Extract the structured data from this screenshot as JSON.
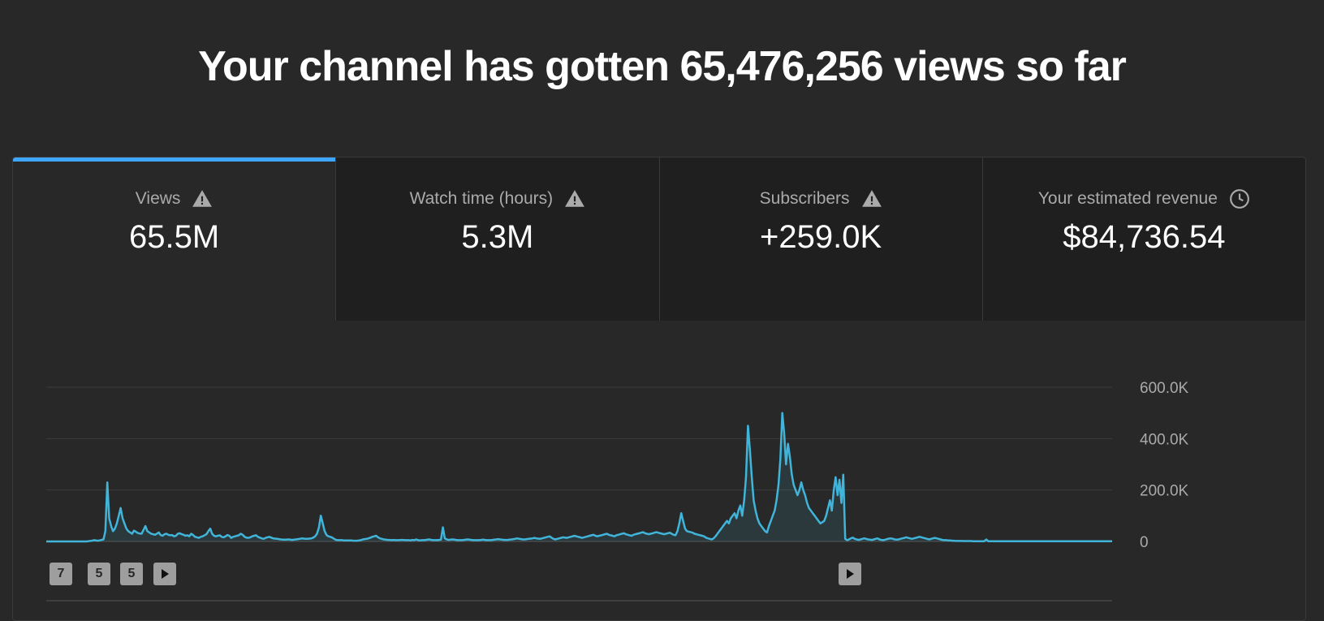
{
  "headline": "Your channel has gotten 65,476,256 views so far",
  "tabs": [
    {
      "label": "Views",
      "value": "65.5M",
      "icon": "warning-icon",
      "active": true
    },
    {
      "label": "Watch time (hours)",
      "value": "5.3M",
      "icon": "warning-icon",
      "active": false
    },
    {
      "label": "Subscribers",
      "value": "+259.0K",
      "icon": "warning-icon",
      "active": false
    },
    {
      "label": "Your estimated revenue",
      "value": "$84,736.54",
      "icon": "clock-icon",
      "active": false
    }
  ],
  "markers": [
    {
      "label": "7",
      "type": "number"
    },
    {
      "label": "5",
      "type": "number"
    },
    {
      "label": "5",
      "type": "number"
    },
    {
      "label": "",
      "type": "play-icon"
    },
    {
      "label": "",
      "type": "play-icon"
    }
  ],
  "colors": {
    "accent": "#3ea6ff",
    "line": "#41b4d9",
    "grid": "#3d3d3d",
    "tab_bg": "#1f1f1f",
    "page_bg": "#282828"
  },
  "chart_data": {
    "type": "line",
    "title": "",
    "xlabel": "",
    "ylabel": "",
    "ylim": [
      0,
      600000
    ],
    "yticks": [
      0,
      200000,
      400000,
      600000
    ],
    "ytick_labels": [
      "0",
      "200.0K",
      "400.0K",
      "600.0K"
    ],
    "series": [
      {
        "values": [
          0,
          0,
          0,
          0,
          0,
          0,
          0,
          0,
          0,
          0,
          0,
          0,
          0,
          0,
          0,
          0,
          0,
          0,
          0,
          0,
          0,
          0,
          1000,
          2000,
          3000,
          5000,
          4000,
          3000,
          4000,
          6000,
          8000,
          40000,
          230000,
          90000,
          60000,
          40000,
          50000,
          70000,
          100000,
          130000,
          90000,
          70000,
          50000,
          40000,
          35000,
          30000,
          42000,
          38000,
          33000,
          31000,
          30000,
          45000,
          60000,
          40000,
          35000,
          30000,
          28000,
          26000,
          30000,
          35000,
          25000,
          22000,
          28000,
          30000,
          26000,
          24000,
          25000,
          20000,
          22000,
          30000,
          32000,
          28000,
          26000,
          22000,
          24000,
          20000,
          30000,
          25000,
          18000,
          16000,
          14000,
          18000,
          20000,
          24000,
          28000,
          40000,
          50000,
          30000,
          22000,
          20000,
          22000,
          24000,
          18000,
          16000,
          20000,
          25000,
          22000,
          14000,
          18000,
          20000,
          22000,
          24000,
          30000,
          26000,
          18000,
          15000,
          14000,
          16000,
          20000,
          22000,
          24000,
          18000,
          15000,
          12000,
          10000,
          14000,
          16000,
          18000,
          15000,
          12000,
          11000,
          10000,
          9000,
          8000,
          7000,
          7000,
          7000,
          8000,
          7000,
          6000,
          7000,
          8000,
          9000,
          10000,
          12000,
          11000,
          10000,
          10000,
          11000,
          12000,
          15000,
          20000,
          30000,
          55000,
          100000,
          70000,
          40000,
          25000,
          20000,
          18000,
          15000,
          10000,
          6000,
          5000,
          5000,
          5000,
          4000,
          4000,
          4000,
          4000,
          4000,
          3000,
          3000,
          3000,
          4000,
          5000,
          8000,
          9000,
          10000,
          12000,
          15000,
          18000,
          20000,
          22000,
          16000,
          12000,
          10000,
          8000,
          7000,
          6000,
          6000,
          5000,
          6000,
          5000,
          5000,
          5000,
          6000,
          6000,
          5000,
          5000,
          5000,
          4000,
          6000,
          5000,
          8000,
          5000,
          4000,
          5000,
          5000,
          6000,
          7000,
          8000,
          6000,
          5000,
          5000,
          5000,
          6000,
          7000,
          55000,
          12000,
          8000,
          6000,
          7000,
          8000,
          7000,
          6000,
          5000,
          5000,
          5000,
          6000,
          7000,
          8000,
          7000,
          6000,
          5000,
          5000,
          5000,
          5000,
          6000,
          7000,
          6000,
          5000,
          5000,
          5000,
          6000,
          7000,
          8000,
          9000,
          8000,
          7000,
          6000,
          6000,
          6000,
          7000,
          8000,
          9000,
          10000,
          12000,
          10000,
          9000,
          8000,
          8000,
          9000,
          10000,
          11000,
          12000,
          14000,
          12000,
          11000,
          10000,
          12000,
          14000,
          16000,
          18000,
          20000,
          15000,
          10000,
          8000,
          10000,
          12000,
          14000,
          16000,
          15000,
          14000,
          16000,
          18000,
          20000,
          22000,
          20000,
          18000,
          16000,
          14000,
          16000,
          18000,
          20000,
          22000,
          24000,
          26000,
          22000,
          20000,
          22000,
          24000,
          26000,
          28000,
          30000,
          26000,
          24000,
          22000,
          20000,
          24000,
          26000,
          28000,
          30000,
          32000,
          28000,
          26000,
          24000,
          22000,
          26000,
          28000,
          30000,
          32000,
          34000,
          36000,
          32000,
          30000,
          28000,
          30000,
          32000,
          34000,
          36000,
          34000,
          32000,
          30000,
          28000,
          30000,
          32000,
          34000,
          30000,
          26000,
          24000,
          40000,
          70000,
          110000,
          80000,
          50000,
          40000,
          38000,
          36000,
          34000,
          30000,
          28000,
          26000,
          24000,
          22000,
          20000,
          15000,
          12000,
          10000,
          8000,
          12000,
          20000,
          30000,
          40000,
          50000,
          60000,
          70000,
          80000,
          70000,
          90000,
          100000,
          110000,
          90000,
          120000,
          140000,
          100000,
          160000,
          250000,
          450000,
          360000,
          250000,
          160000,
          120000,
          90000,
          70000,
          60000,
          50000,
          40000,
          35000,
          60000,
          80000,
          100000,
          120000,
          160000,
          220000,
          320000,
          500000,
          420000,
          300000,
          380000,
          330000,
          260000,
          220000,
          200000,
          180000,
          200000,
          230000,
          200000,
          180000,
          150000,
          130000,
          120000,
          110000,
          100000,
          90000,
          80000,
          70000,
          75000,
          80000,
          100000,
          130000,
          160000,
          120000,
          200000,
          250000,
          180000,
          240000,
          150000,
          260000,
          10000,
          5000,
          8000,
          12000,
          15000,
          10000,
          8000,
          6000,
          8000,
          10000,
          12000,
          10000,
          8000,
          7000,
          6000,
          8000,
          10000,
          12000,
          8000,
          6000,
          5000,
          7000,
          9000,
          11000,
          12000,
          10000,
          8000,
          7000,
          8000,
          10000,
          12000,
          14000,
          16000,
          14000,
          12000,
          10000,
          12000,
          14000,
          16000,
          18000,
          16000,
          14000,
          12000,
          10000,
          8000,
          10000,
          12000,
          14000,
          12000,
          10000,
          8000,
          6000,
          5000,
          5000,
          4000,
          4000,
          3000,
          3000,
          2000,
          2000,
          2000,
          2000,
          1500,
          1500,
          1500,
          1500,
          1500,
          1000,
          1000,
          1000,
          1000,
          1000,
          1000,
          1000,
          8000,
          1000,
          1000,
          1000,
          1000,
          1000,
          1000,
          1000,
          1000,
          1000,
          1000,
          1000,
          1000,
          1000,
          1000,
          1000,
          1000,
          1000,
          1000,
          1000,
          1000,
          1000,
          1000,
          1000,
          1000,
          1000,
          1000,
          1000,
          1000,
          1000,
          1000,
          1000,
          1000,
          1000,
          1000,
          1000,
          1000,
          1000,
          1000,
          1000,
          1000,
          1000,
          1000,
          1000,
          1000,
          1000,
          1000,
          1000,
          1000,
          1000,
          1000,
          1000,
          1000,
          1000,
          1000,
          1000,
          1000,
          1000,
          1000,
          1000,
          1000,
          1000,
          1000,
          1000,
          1000,
          1000,
          1000
        ]
      }
    ]
  }
}
